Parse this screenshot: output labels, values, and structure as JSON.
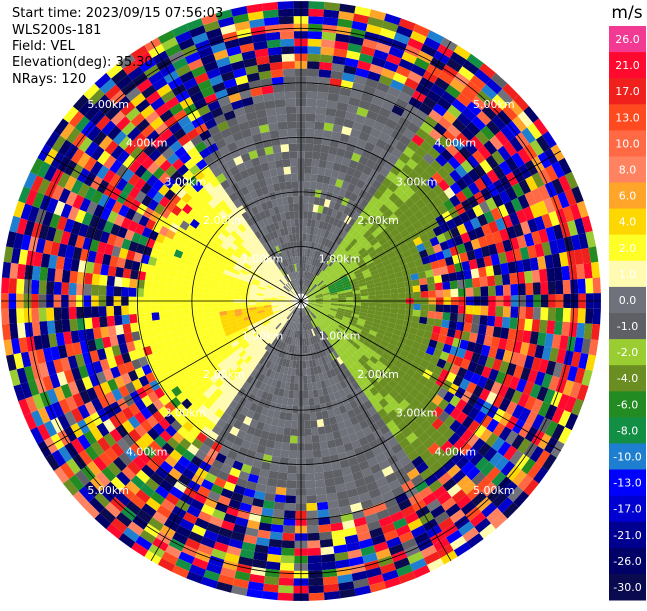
{
  "info": {
    "start_time": "Start time: 2023/09/15 07:56:03",
    "instrument": "WLS200s-181",
    "field": "Field: VEL",
    "elevation": "Elevation(deg): 35.30",
    "nrays": "NRays: 120"
  },
  "colorbar": {
    "unit": "m/s",
    "labels": [
      "26.0",
      "21.0",
      "17.0",
      "13.0",
      "10.0",
      "8.0",
      "6.0",
      "4.0",
      "2.0",
      "1.0",
      "0.0",
      "-1.0",
      "-2.0",
      "-4.0",
      "-6.0",
      "-8.0",
      "-10.0",
      "-13.0",
      "-17.0",
      "-21.0",
      "-26.0",
      "-30.0"
    ],
    "colors": [
      "#f23a93",
      "#ff0a2e",
      "#f0211c",
      "#ff4a1f",
      "#ff6a45",
      "#ff8360",
      "#ffa62a",
      "#ffd700",
      "#ffff28",
      "#fffbb0",
      "#6f727a",
      "#5e6066",
      "#9acd32",
      "#6b8e23",
      "#228b22",
      "#138e45",
      "#1e7fd0",
      "#0000ff",
      "#0000d0",
      "#000090",
      "#000066",
      "#0a0a50"
    ]
  },
  "chart_data": {
    "type": "heatmap",
    "field": "VEL",
    "unit": "m/s",
    "elevation_deg": 35.3,
    "n_rays": 120,
    "range_rings_km": [
      1.0,
      2.0,
      3.0,
      4.0,
      5.0
    ],
    "range_labels": [
      "1.00km",
      "2.00km",
      "3.00km",
      "4.00km",
      "5.00km"
    ],
    "max_range_km": 5.5,
    "color_scale_m_s": [
      -30,
      -26,
      -21,
      -17,
      -13,
      -10,
      -8,
      -6,
      -4,
      -2,
      -1,
      0,
      1,
      2,
      4,
      6,
      8,
      10,
      13,
      17,
      21,
      26
    ],
    "radial_velocity_pattern": [
      {
        "azimuth_deg": 270,
        "range_km": [
          0.1,
          3.9
        ],
        "velocity_m_s": 2.0
      },
      {
        "azimuth_deg": 255,
        "range_km": [
          0.5,
          1.5
        ],
        "velocity_m_s": 6.0
      },
      {
        "azimuth_deg": 90,
        "range_km": [
          0.1,
          3.5
        ],
        "velocity_m_s": -2.0
      },
      {
        "azimuth_deg": 70,
        "range_km": [
          0.6,
          0.9
        ],
        "velocity_m_s": -6.0
      },
      {
        "azimuth_deg": 0,
        "range_km": [
          0.1,
          3.0
        ],
        "velocity_m_s": 0.0
      },
      {
        "azimuth_deg": 180,
        "range_km": [
          0.1,
          3.0
        ],
        "velocity_m_s": 0.0
      },
      {
        "azimuth_deg": 0,
        "range_km": [
          4.0,
          5.5
        ],
        "velocity_m_s": "noise"
      }
    ]
  }
}
